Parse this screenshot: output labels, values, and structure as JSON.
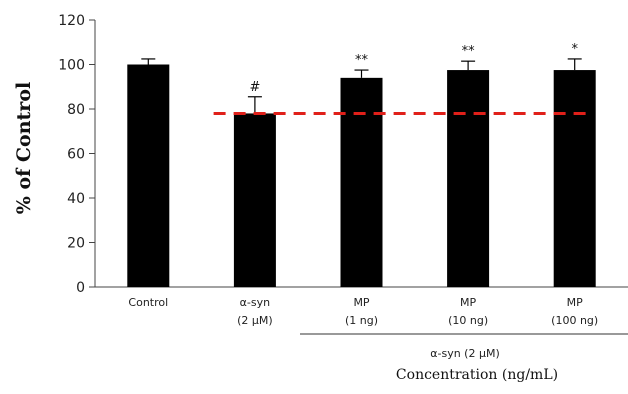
{
  "chart_data": {
    "type": "bar",
    "title": "",
    "ylabel": "% of Control",
    "xlabel": "Concentration (ng/mL)",
    "ylim": [
      0,
      120
    ],
    "yticks": [
      0,
      20,
      40,
      60,
      80,
      100,
      120
    ],
    "categories": [
      {
        "line1": "Control",
        "line2": ""
      },
      {
        "line1": "α-syn",
        "line2": "(2 μM)"
      },
      {
        "line1": "MP",
        "line2": "(1 ng)"
      },
      {
        "line1": "MP",
        "line2": "(10 ng)"
      },
      {
        "line1": "MP",
        "line2": "(100 ng)"
      }
    ],
    "values": [
      100,
      78,
      94,
      97.5,
      97.5
    ],
    "errors": [
      2.5,
      7.5,
      3.5,
      4,
      5
    ],
    "significance": [
      "",
      "#",
      "**",
      "**",
      "*"
    ],
    "reference_line": {
      "y": 78,
      "color": "#e0201a",
      "style": "dashed"
    },
    "group_label": "α-syn (2 μM)",
    "bar_color": "#000000",
    "grid": false
  }
}
